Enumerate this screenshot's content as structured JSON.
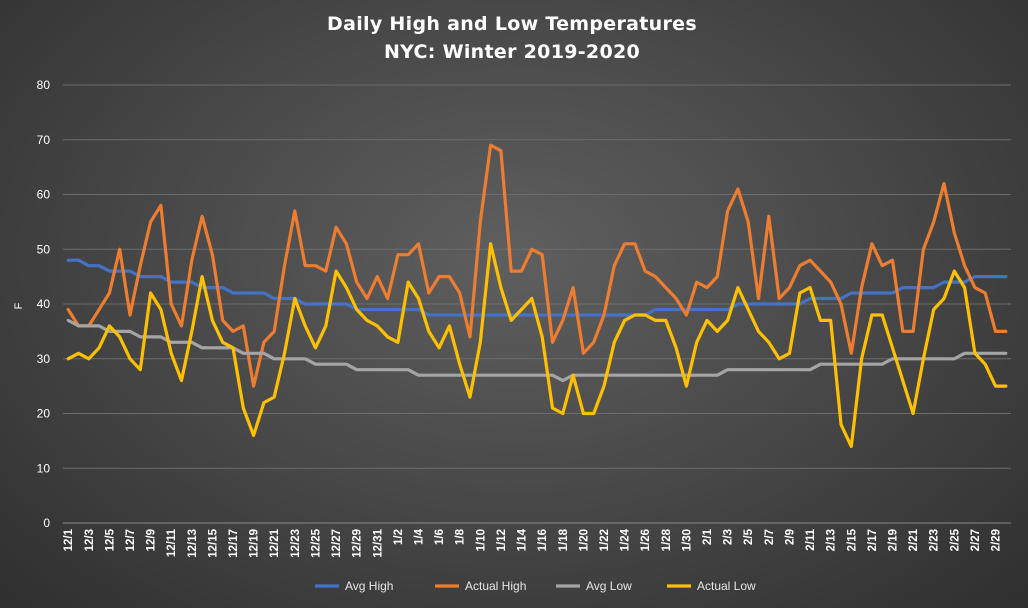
{
  "chart_data": {
    "type": "line",
    "title": "Daily High and Low Temperatures",
    "subtitle": "NYC: Winter 2019-2020",
    "xlabel": "",
    "ylabel": "F",
    "ylim": [
      0,
      80
    ],
    "yticks": [
      "0",
      "10",
      "20",
      "30",
      "40",
      "50",
      "60",
      "70",
      "80"
    ],
    "grid": true,
    "legend_position": "bottom",
    "x_tick_labels": [
      "12/1",
      "12/3",
      "12/5",
      "12/7",
      "12/9",
      "12/11",
      "12/13",
      "12/15",
      "12/17",
      "12/19",
      "12/21",
      "12/23",
      "12/25",
      "12/27",
      "12/29",
      "12/31",
      "1/2",
      "1/4",
      "1/6",
      "1/8",
      "1/10",
      "1/12",
      "1/14",
      "1/16",
      "1/18",
      "1/20",
      "1/22",
      "1/24",
      "1/26",
      "1/28",
      "1/30",
      "2/1",
      "2/3",
      "2/5",
      "2/7",
      "2/9",
      "2/11",
      "2/13",
      "2/15",
      "2/17",
      "2/19",
      "2/21",
      "2/23",
      "2/25",
      "2/27",
      "2/29"
    ],
    "series": [
      {
        "name": "Avg High",
        "color": "#4472c4",
        "values": [
          48,
          48,
          47,
          47,
          46,
          46,
          46,
          45,
          45,
          45,
          44,
          44,
          44,
          43,
          43,
          43,
          42,
          42,
          42,
          42,
          41,
          41,
          41,
          40,
          40,
          40,
          40,
          40,
          39,
          39,
          39,
          39,
          39,
          39,
          39,
          38,
          38,
          38,
          38,
          38,
          38,
          38,
          38,
          38,
          38,
          38,
          38,
          38,
          38,
          38,
          38,
          38,
          38,
          38,
          38,
          38,
          38,
          39,
          39,
          39,
          39,
          39,
          39,
          39,
          39,
          40,
          40,
          40,
          40,
          40,
          40,
          40,
          41,
          41,
          41,
          41,
          42,
          42,
          42,
          42,
          42,
          43,
          43,
          43,
          43,
          44,
          44,
          44,
          45,
          45,
          45,
          45
        ]
      },
      {
        "name": "Actual High",
        "color": "#ed7d31",
        "values": [
          39,
          36,
          36,
          39,
          42,
          50,
          38,
          47,
          55,
          58,
          40,
          36,
          48,
          56,
          49,
          37,
          35,
          36,
          25,
          33,
          35,
          47,
          57,
          47,
          47,
          46,
          54,
          51,
          44,
          41,
          45,
          41,
          49,
          49,
          51,
          42,
          45,
          45,
          42,
          34,
          55,
          69,
          68,
          46,
          46,
          50,
          49,
          33,
          37,
          43,
          31,
          33,
          38,
          47,
          51,
          51,
          46,
          45,
          43,
          41,
          38,
          44,
          43,
          45,
          57,
          61,
          55,
          41,
          56,
          41,
          43,
          47,
          48,
          46,
          44,
          40,
          31,
          43,
          51,
          47,
          48,
          35,
          35,
          50,
          55,
          62,
          53,
          47,
          43,
          42,
          35,
          35
        ]
      },
      {
        "name": "Avg Low",
        "color": "#a5a5a5",
        "values": [
          37,
          36,
          36,
          36,
          35,
          35,
          35,
          34,
          34,
          34,
          33,
          33,
          33,
          32,
          32,
          32,
          32,
          31,
          31,
          31,
          30,
          30,
          30,
          30,
          29,
          29,
          29,
          29,
          28,
          28,
          28,
          28,
          28,
          28,
          27,
          27,
          27,
          27,
          27,
          27,
          27,
          27,
          27,
          27,
          27,
          27,
          27,
          27,
          26,
          27,
          27,
          27,
          27,
          27,
          27,
          27,
          27,
          27,
          27,
          27,
          27,
          27,
          27,
          27,
          28,
          28,
          28,
          28,
          28,
          28,
          28,
          28,
          28,
          29,
          29,
          29,
          29,
          29,
          29,
          29,
          30,
          30,
          30,
          30,
          30,
          30,
          30,
          31,
          31,
          31,
          31,
          31
        ]
      },
      {
        "name": "Actual Low",
        "color": "#ffc000",
        "values": [
          30,
          31,
          30,
          32,
          36,
          34,
          30,
          28,
          42,
          39,
          31,
          26,
          35,
          45,
          37,
          33,
          32,
          21,
          16,
          22,
          23,
          31,
          41,
          36,
          32,
          36,
          46,
          43,
          39,
          37,
          36,
          34,
          33,
          44,
          41,
          35,
          32,
          36,
          29,
          23,
          33,
          51,
          43,
          37,
          39,
          41,
          34,
          21,
          20,
          27,
          20,
          20,
          25,
          33,
          37,
          38,
          38,
          37,
          37,
          32,
          25,
          33,
          37,
          35,
          37,
          43,
          39,
          35,
          33,
          30,
          31,
          42,
          43,
          37,
          37,
          18,
          14,
          30,
          38,
          38,
          32,
          26,
          20,
          30,
          39,
          41,
          46,
          43,
          31,
          29,
          25,
          25
        ]
      }
    ]
  }
}
